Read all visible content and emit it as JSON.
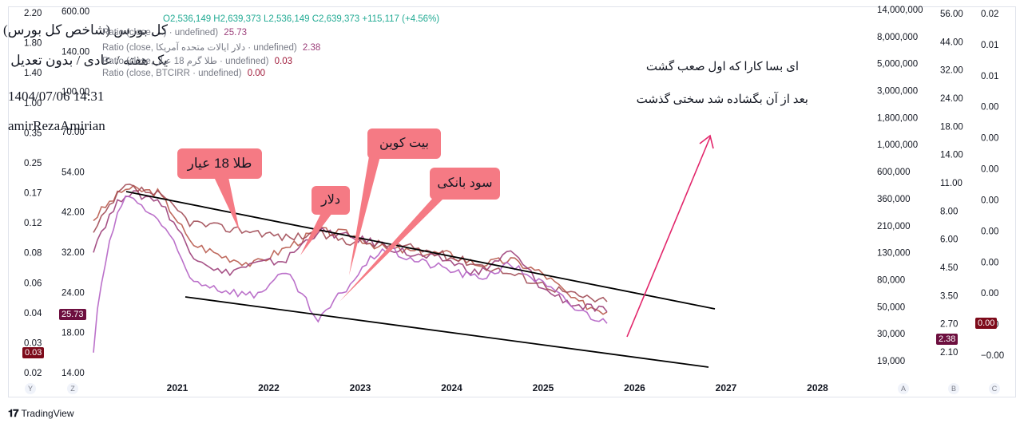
{
  "annotations": {
    "title": "کل بورس (شاخص کل بورس)",
    "subtitle": "یک هفته / عادی / بدون تعدیل",
    "datetime": "1404/07/06 14:31",
    "author": "amirRezaAmirian",
    "note_line1": "ای بسا کارا که اول صعب گشت",
    "note_line2": "بعد از آن بگشاده شد سختی گذشت"
  },
  "legend": {
    "ohlc": "O2,536,149 H2,639,373 L2,536,149 C2,639,373 +115,117 (+4.56%)",
    "s1_name": "Ratio (close, ...) · undefined)",
    "s1_value": "25.73",
    "s2_name": "Ratio (close, دلار ایالات متحده آمریکا · undefined)",
    "s2_value": "2.38",
    "s3_name": "Ratio (close, طلا گرم 18 عیار · undefined)",
    "s3_value": "0.03",
    "s4_name": "Ratio (close, BTCIRR · undefined)",
    "s4_value": "0.00"
  },
  "callouts": {
    "gold": "طلا 18 عیار",
    "dollar": "دلار",
    "bitcoin": "بیت کوین",
    "bank": "سود بانکی"
  },
  "axis_buttons": {
    "y": "Y",
    "z": "Z",
    "a": "A",
    "b": "B",
    "c": "C"
  },
  "price_tags": {
    "z_tag": "25.73",
    "y_tag": "0.03",
    "b_tag": "2.38",
    "c_tag": "0.00"
  },
  "brand": "TradingView",
  "colors": {
    "index": "#b85a4c",
    "dollar": "#9c3f7a",
    "gold": "#a14b55",
    "bitcoin": "#b462c4",
    "callout": "#f57a84",
    "arrow": "#e2266b",
    "tag_dark": "#6d0f3f",
    "tag_red": "#7d0a1a"
  },
  "chart_data": {
    "type": "line",
    "title": "کل بورس (شاخص کل بورس)",
    "x_ticks": [
      "2021",
      "2022",
      "2023",
      "2024",
      "2025",
      "2026",
      "2027",
      "2028"
    ],
    "axes": {
      "Y": [
        "2.20",
        "1.80",
        "1.40",
        "1.00",
        "0.35",
        "0.25",
        "0.17",
        "0.12",
        "0.08",
        "0.06",
        "0.04",
        "0.03",
        "0.02"
      ],
      "Z": [
        "600.00",
        "140.00",
        "100.00",
        "70.00",
        "54.00",
        "42.00",
        "32.00",
        "24.00",
        "18.00",
        "14.00"
      ],
      "A": [
        "14,000,000",
        "8,000,000",
        "5,000,000",
        "3,000,000",
        "1,800,000",
        "1,000,000",
        "600,000",
        "360,000",
        "210,000",
        "130,000",
        "80,000",
        "50,000",
        "30,000",
        "19,000"
      ],
      "B": [
        "56.00",
        "44.00",
        "32.00",
        "24.00",
        "18.00",
        "14.00",
        "11.00",
        "8.00",
        "6.00",
        "4.50",
        "3.50",
        "2.70",
        "2.10"
      ],
      "C": [
        "0.02",
        "0.01",
        "0.01",
        "0.00",
        "0.00",
        "0.00",
        "0.00",
        "0.00",
        "0.00",
        "0.00",
        "0.00",
        "−0.00"
      ]
    },
    "series": [
      {
        "name": "Ratio (close, ...)",
        "values": [
          70,
          96,
          92,
          55,
          48,
          44,
          52,
          62,
          60,
          52,
          50,
          49,
          44,
          46,
          40,
          30,
          27
        ]
      },
      {
        "name": "Ratio (close, دلار ایالات متحده آمریکا)",
        "values": [
          52,
          92,
          86,
          50,
          40,
          44,
          46,
          62,
          58,
          54,
          48,
          46,
          40,
          50,
          34,
          29,
          27
        ]
      },
      {
        "name": "Ratio (close, طلا گرم 18 عیار)",
        "values": [
          60,
          98,
          90,
          68,
          64,
          62,
          58,
          60,
          56,
          54,
          52,
          48,
          44,
          40,
          36,
          32,
          30
        ]
      },
      {
        "name": "Ratio (close, BTCIRR)",
        "values": [
          18,
          90,
          70,
          38,
          34,
          32,
          40,
          24,
          36,
          52,
          46,
          42,
          38,
          44,
          36,
          28,
          24
        ]
      }
    ],
    "trendlines": [
      {
        "from": [
          "2020-12",
          100
        ],
        "to": [
          "2027-12",
          28
        ]
      },
      {
        "from": [
          "2021-01",
          32
        ],
        "to": [
          "2027-12",
          14.5
        ]
      }
    ],
    "grid": false,
    "legend_position": "top-left"
  }
}
